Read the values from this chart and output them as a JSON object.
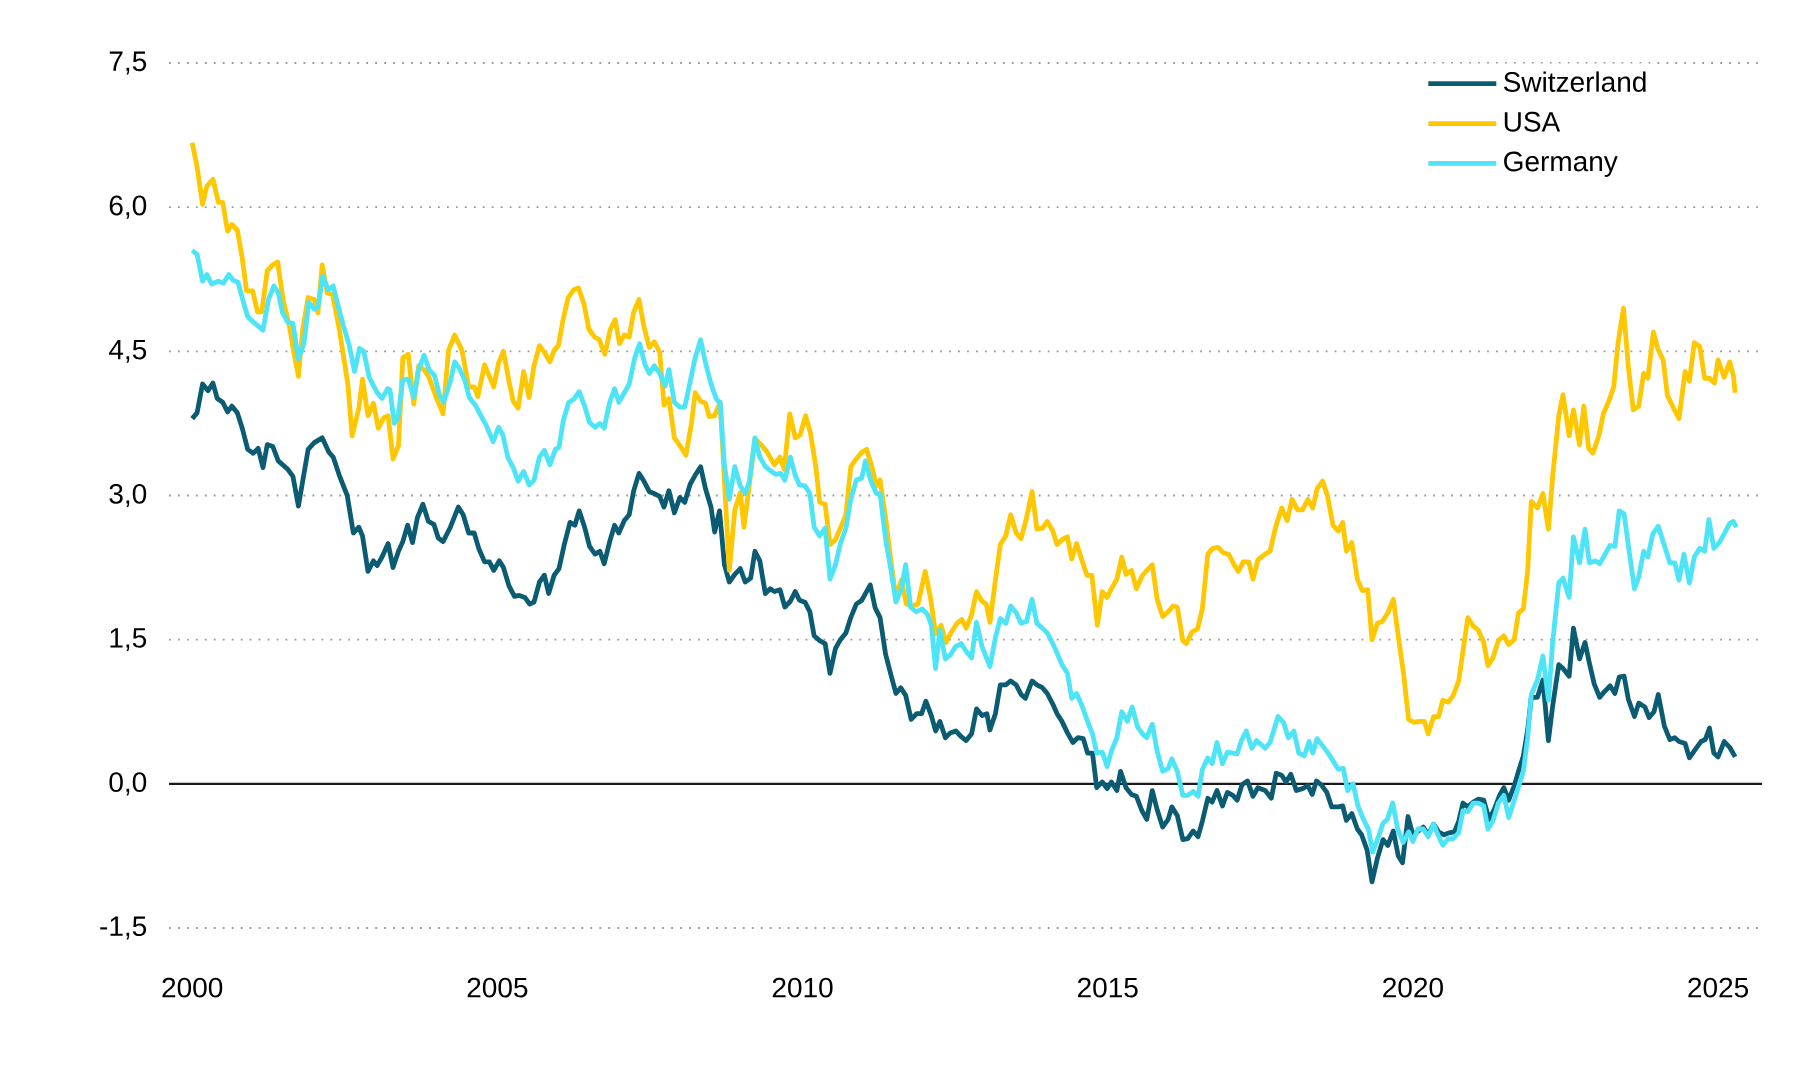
{
  "chart_data": {
    "type": "line",
    "xlim": [
      1999.62,
      2025.72
    ],
    "ylim": [
      -1.5,
      7.5
    ],
    "xticks": [
      2000,
      2005,
      2010,
      2015,
      2020,
      2025
    ],
    "yticks": [
      {
        "value": -1.5,
        "label": "-1,5"
      },
      {
        "value": 0,
        "label": "0,0"
      },
      {
        "value": 1.5,
        "label": "1,5"
      },
      {
        "value": 3,
        "label": "3,0"
      },
      {
        "value": 4.5,
        "label": "4,5"
      },
      {
        "value": 6,
        "label": "6,0"
      },
      {
        "value": 7.5,
        "label": "7,5"
      }
    ],
    "grid": "y",
    "legend": "top right",
    "line_style": "solid",
    "ref_lines": [
      {
        "axis": "y",
        "value": 0,
        "color": "#1a1a1a"
      }
    ],
    "series": [
      {
        "name": "Switzerland",
        "color": "#0b5c73",
        "x": [
          2000.0,
          2000.08,
          2000.17,
          2000.26,
          2000.34,
          2000.41,
          2000.5,
          2000.58,
          2000.65,
          2000.74,
          2000.82,
          2000.91,
          2001.0,
          2001.08,
          2001.16,
          2001.23,
          2001.32,
          2001.41,
          2001.57,
          2001.65,
          2001.74,
          2001.9,
          2002.0,
          2002.13,
          2002.24,
          2002.31,
          2002.41,
          2002.54,
          2002.64,
          2002.73,
          2002.79,
          2002.88,
          2002.97,
          2003.03,
          2003.11,
          2003.21,
          2003.29,
          2003.38,
          2003.45,
          2003.53,
          2003.61,
          2003.69,
          2003.78,
          2003.87,
          2003.96,
          2004.03,
          2004.11,
          2004.23,
          2004.36,
          2004.44,
          2004.53,
          2004.62,
          2004.7,
          2004.79,
          2004.87,
          2004.94,
          2005.03,
          2005.1,
          2005.19,
          2005.28,
          2005.36,
          2005.45,
          2005.53,
          2005.6,
          2005.69,
          2005.77,
          2005.84,
          2005.93,
          2006.01,
          2006.1,
          2006.19,
          2006.27,
          2006.34,
          2006.43,
          2006.51,
          2006.6,
          2006.68,
          2006.75,
          2006.84,
          2006.92,
          2006.99,
          2007.08,
          2007.16,
          2007.23,
          2007.32,
          2007.4,
          2007.49,
          2007.57,
          2007.66,
          2007.73,
          2007.81,
          2007.9,
          2007.99,
          2008.07,
          2008.16,
          2008.24,
          2008.33,
          2008.41,
          2008.5,
          2008.56,
          2008.64,
          2008.72,
          2008.8,
          2008.89,
          2008.98,
          2009.06,
          2009.15,
          2009.22,
          2009.3,
          2009.39,
          2009.47,
          2009.54,
          2009.63,
          2009.71,
          2009.8,
          2009.88,
          2009.95,
          2010.04,
          2010.12,
          2010.19,
          2010.28,
          2010.37,
          2010.45,
          2010.54,
          2010.62,
          2010.71,
          2010.79,
          2010.88,
          2010.97,
          2011.03,
          2011.11,
          2011.19,
          2011.27,
          2011.36,
          2011.45,
          2011.53,
          2011.61,
          2011.69,
          2011.78,
          2011.87,
          2011.95,
          2012.02,
          2012.11,
          2012.18,
          2012.25,
          2012.34,
          2012.42,
          2012.51,
          2012.6,
          2012.68,
          2012.77,
          2012.85,
          2012.94,
          2013.02,
          2013.07,
          2013.16,
          2013.24,
          2013.33,
          2013.41,
          2013.5,
          2013.58,
          2013.65,
          2013.76,
          2013.84,
          2013.93,
          2014.01,
          2014.1,
          2014.17,
          2014.25,
          2014.34,
          2014.43,
          2014.51,
          2014.6,
          2014.67,
          2014.75,
          2014.82,
          2014.91,
          2014.99,
          2015.06,
          2015.15,
          2015.21,
          2015.3,
          2015.39,
          2015.47,
          2015.56,
          2015.64,
          2015.73,
          2015.81,
          2015.9,
          2015.99,
          2016.05,
          2016.14,
          2016.23,
          2016.31,
          2016.4,
          2016.48,
          2016.55,
          2016.64,
          2016.71,
          2016.79,
          2016.88,
          2016.96,
          2017.05,
          2017.12,
          2017.2,
          2017.29,
          2017.38,
          2017.46,
          2017.58,
          2017.68,
          2017.76,
          2017.85,
          2017.92,
          2018.0,
          2018.09,
          2018.19,
          2018.28,
          2018.35,
          2018.42,
          2018.5,
          2018.59,
          2018.67,
          2018.78,
          2018.85,
          2018.91,
          2019.0,
          2019.09,
          2019.16,
          2019.25,
          2019.33,
          2019.42,
          2019.51,
          2019.59,
          2019.68,
          2019.76,
          2019.83,
          2019.92,
          2020.0,
          2020.09,
          2020.17,
          2020.25,
          2020.34,
          2020.42,
          2020.51,
          2020.59,
          2020.68,
          2020.75,
          2020.82,
          2020.9,
          2020.99,
          2021.07,
          2021.16,
          2021.25,
          2021.33,
          2021.42,
          2021.49,
          2021.57,
          2021.66,
          2021.74,
          2021.81,
          2021.88,
          2021.94,
          2022.04,
          2022.13,
          2022.22,
          2022.29,
          2022.39,
          2022.46,
          2022.56,
          2022.63,
          2022.73,
          2022.82,
          2022.89,
          2022.97,
          2023.06,
          2023.14,
          2023.23,
          2023.31,
          2023.38,
          2023.46,
          2023.53,
          2023.63,
          2023.7,
          2023.8,
          2023.87,
          2023.95,
          2024.02,
          2024.12,
          2024.21,
          2024.29,
          2024.36,
          2024.46,
          2024.53,
          2024.63,
          2024.72,
          2024.79,
          2024.86,
          2024.93,
          2025.0,
          2025.1,
          2025.19,
          2025.28
        ],
        "values": [
          3.8,
          3.86,
          4.16,
          4.09,
          4.17,
          4.01,
          3.97,
          3.87,
          3.93,
          3.86,
          3.7,
          3.48,
          3.44,
          3.49,
          3.29,
          3.53,
          3.51,
          3.36,
          3.27,
          3.2,
          2.89,
          3.48,
          3.55,
          3.6,
          3.45,
          3.4,
          3.21,
          3.0,
          2.61,
          2.67,
          2.58,
          2.21,
          2.32,
          2.27,
          2.36,
          2.5,
          2.25,
          2.42,
          2.52,
          2.69,
          2.51,
          2.77,
          2.91,
          2.73,
          2.7,
          2.56,
          2.52,
          2.67,
          2.88,
          2.8,
          2.61,
          2.61,
          2.44,
          2.31,
          2.31,
          2.22,
          2.32,
          2.25,
          2.06,
          1.95,
          1.96,
          1.94,
          1.87,
          1.89,
          2.1,
          2.17,
          1.98,
          2.17,
          2.24,
          2.5,
          2.72,
          2.69,
          2.84,
          2.67,
          2.47,
          2.39,
          2.42,
          2.29,
          2.52,
          2.69,
          2.61,
          2.74,
          2.8,
          3.04,
          3.23,
          3.15,
          3.04,
          3.02,
          2.99,
          2.88,
          3.05,
          2.82,
          2.98,
          2.93,
          3.12,
          3.21,
          3.3,
          3.07,
          2.88,
          2.62,
          2.84,
          2.28,
          2.1,
          2.18,
          2.24,
          2.1,
          2.14,
          2.42,
          2.32,
          1.98,
          2.03,
          2.0,
          2.02,
          1.84,
          1.9,
          2.0,
          1.91,
          1.89,
          1.79,
          1.54,
          1.49,
          1.46,
          1.15,
          1.41,
          1.5,
          1.57,
          1.73,
          1.87,
          1.91,
          1.98,
          2.07,
          1.83,
          1.73,
          1.35,
          1.13,
          0.94,
          1.0,
          0.92,
          0.67,
          0.73,
          0.73,
          0.86,
          0.71,
          0.55,
          0.65,
          0.48,
          0.53,
          0.55,
          0.49,
          0.45,
          0.52,
          0.78,
          0.71,
          0.73,
          0.56,
          0.73,
          1.03,
          1.03,
          1.07,
          1.03,
          0.93,
          0.89,
          1.07,
          1.03,
          1.0,
          0.94,
          0.83,
          0.73,
          0.65,
          0.53,
          0.43,
          0.48,
          0.47,
          0.32,
          0.32,
          -0.04,
          0.02,
          -0.05,
          0.02,
          -0.07,
          0.13,
          -0.04,
          -0.11,
          -0.13,
          -0.28,
          -0.37,
          -0.07,
          -0.27,
          -0.45,
          -0.37,
          -0.24,
          -0.33,
          -0.58,
          -0.57,
          -0.49,
          -0.55,
          -0.39,
          -0.15,
          -0.19,
          -0.07,
          -0.23,
          -0.09,
          -0.12,
          -0.17,
          -0.01,
          0.03,
          -0.13,
          -0.04,
          -0.07,
          -0.15,
          0.11,
          0.09,
          0.02,
          0.1,
          -0.07,
          -0.05,
          -0.02,
          -0.11,
          0.03,
          -0.01,
          -0.09,
          -0.24,
          -0.24,
          -0.23,
          -0.38,
          -0.31,
          -0.47,
          -0.53,
          -0.69,
          -1.02,
          -0.77,
          -0.58,
          -0.64,
          -0.49,
          -0.75,
          -0.82,
          -0.34,
          -0.53,
          -0.49,
          -0.45,
          -0.53,
          -0.42,
          -0.5,
          -0.53,
          -0.51,
          -0.5,
          -0.39,
          -0.2,
          -0.24,
          -0.19,
          -0.16,
          -0.17,
          -0.37,
          -0.27,
          -0.12,
          -0.04,
          -0.17,
          -0.02,
          0.15,
          0.29,
          0.56,
          0.9,
          0.9,
          1.08,
          0.45,
          0.81,
          1.24,
          1.2,
          1.12,
          1.62,
          1.3,
          1.47,
          1.26,
          1.04,
          0.9,
          0.96,
          1.02,
          0.94,
          1.11,
          1.12,
          0.88,
          0.7,
          0.84,
          0.8,
          0.69,
          0.75,
          0.93,
          0.6,
          0.46,
          0.48,
          0.44,
          0.42,
          0.27,
          0.36,
          0.44,
          0.46,
          0.58,
          0.32,
          0.28,
          0.44,
          0.38,
          0.28
        ]
      },
      {
        "name": "USA",
        "color": "#ffc700",
        "x": [
          2000.0,
          2000.08,
          2000.17,
          2000.24,
          2000.34,
          2000.43,
          2000.5,
          2000.58,
          2000.65,
          2000.74,
          2000.82,
          2000.89,
          2000.99,
          2001.07,
          2001.14,
          2001.23,
          2001.32,
          2001.4,
          2001.49,
          2001.59,
          2001.66,
          2001.74,
          2001.81,
          2001.9,
          2002.0,
          2002.06,
          2002.13,
          2002.21,
          2002.3,
          2002.41,
          2002.55,
          2002.62,
          2002.73,
          2002.79,
          2002.88,
          2002.97,
          2003.05,
          2003.14,
          2003.21,
          2003.29,
          2003.38,
          2003.45,
          2003.54,
          2003.63,
          2003.71,
          2003.8,
          2003.88,
          2004.01,
          2004.11,
          2004.2,
          2004.3,
          2004.42,
          2004.53,
          2004.62,
          2004.68,
          2004.79,
          2004.94,
          2005.02,
          2005.1,
          2005.19,
          2005.26,
          2005.34,
          2005.43,
          2005.52,
          2005.6,
          2005.69,
          2005.77,
          2005.86,
          2005.93,
          2006.0,
          2006.07,
          2006.16,
          2006.25,
          2006.33,
          2006.42,
          2006.5,
          2006.59,
          2006.67,
          2006.76,
          2006.85,
          2006.93,
          2007.0,
          2007.08,
          2007.16,
          2007.23,
          2007.32,
          2007.4,
          2007.49,
          2007.57,
          2007.66,
          2007.73,
          2007.81,
          2007.9,
          2008.0,
          2008.09,
          2008.18,
          2008.24,
          2008.33,
          2008.41,
          2008.47,
          2008.56,
          2008.65,
          2008.8,
          2008.89,
          2008.98,
          2009.04,
          2009.13,
          2009.22,
          2009.32,
          2009.42,
          2009.54,
          2009.63,
          2009.7,
          2009.79,
          2009.88,
          2009.96,
          2010.05,
          2010.13,
          2010.22,
          2010.28,
          2010.37,
          2010.45,
          2010.54,
          2010.62,
          2010.71,
          2010.79,
          2010.88,
          2010.97,
          2011.05,
          2011.14,
          2011.21,
          2011.27,
          2011.36,
          2011.45,
          2011.53,
          2011.62,
          2011.7,
          2011.79,
          2011.89,
          2012.01,
          2012.1,
          2012.18,
          2012.27,
          2012.35,
          2012.44,
          2012.53,
          2012.61,
          2012.68,
          2012.77,
          2012.85,
          2012.94,
          2013.01,
          2013.07,
          2013.16,
          2013.24,
          2013.33,
          2013.41,
          2013.5,
          2013.58,
          2013.67,
          2013.76,
          2013.84,
          2013.93,
          2014.01,
          2014.1,
          2014.17,
          2014.25,
          2014.34,
          2014.41,
          2014.49,
          2014.57,
          2014.66,
          2014.74,
          2014.83,
          2014.91,
          2014.99,
          2015.06,
          2015.15,
          2015.23,
          2015.3,
          2015.39,
          2015.47,
          2015.56,
          2015.64,
          2015.73,
          2015.81,
          2015.9,
          2015.99,
          2016.07,
          2016.14,
          2016.23,
          2016.29,
          2016.38,
          2016.47,
          2016.55,
          2016.64,
          2016.72,
          2016.81,
          2016.9,
          2016.98,
          2017.07,
          2017.14,
          2017.22,
          2017.31,
          2017.38,
          2017.46,
          2017.58,
          2017.66,
          2017.75,
          2017.85,
          2017.94,
          2018.02,
          2018.11,
          2018.19,
          2018.28,
          2018.36,
          2018.43,
          2018.52,
          2018.6,
          2018.69,
          2018.78,
          2018.85,
          2018.91,
          2019.0,
          2019.09,
          2019.17,
          2019.26,
          2019.33,
          2019.42,
          2019.5,
          2019.59,
          2019.68,
          2019.76,
          2019.85,
          2019.93,
          2020.02,
          2020.11,
          2020.19,
          2020.25,
          2020.34,
          2020.42,
          2020.49,
          2020.58,
          2020.66,
          2020.75,
          2020.82,
          2020.9,
          2020.99,
          2021.07,
          2021.16,
          2021.23,
          2021.31,
          2021.4,
          2021.49,
          2021.57,
          2021.66,
          2021.73,
          2021.81,
          2021.88,
          2021.94,
          2022.04,
          2022.13,
          2022.22,
          2022.29,
          2022.39,
          2022.46,
          2022.56,
          2022.63,
          2022.73,
          2022.8,
          2022.88,
          2022.95,
          2023.05,
          2023.12,
          2023.21,
          2023.29,
          2023.36,
          2023.45,
          2023.53,
          2023.61,
          2023.7,
          2023.78,
          2023.85,
          2023.94,
          2024.01,
          2024.1,
          2024.17,
          2024.27,
          2024.36,
          2024.46,
          2024.53,
          2024.61,
          2024.7,
          2024.78,
          2024.86,
          2024.94,
          2025.0,
          2025.1,
          2025.19,
          2025.25,
          2025.28
        ],
        "values": [
          6.67,
          6.42,
          6.03,
          6.22,
          6.29,
          6.05,
          6.05,
          5.75,
          5.82,
          5.76,
          5.47,
          5.13,
          5.13,
          4.91,
          4.91,
          5.34,
          5.4,
          5.43,
          5.03,
          4.77,
          4.51,
          4.24,
          4.73,
          5.06,
          5.04,
          4.9,
          5.4,
          5.11,
          5.09,
          4.73,
          4.16,
          3.62,
          3.91,
          4.21,
          3.83,
          3.96,
          3.7,
          3.81,
          3.83,
          3.38,
          3.52,
          4.43,
          4.47,
          3.95,
          4.35,
          4.31,
          4.23,
          4.0,
          3.85,
          4.51,
          4.67,
          4.51,
          4.13,
          4.13,
          4.03,
          4.36,
          4.13,
          4.38,
          4.5,
          4.19,
          3.98,
          3.91,
          4.29,
          4.02,
          4.35,
          4.56,
          4.49,
          4.39,
          4.51,
          4.56,
          4.81,
          5.06,
          5.14,
          5.16,
          4.99,
          4.73,
          4.65,
          4.62,
          4.47,
          4.73,
          4.83,
          4.58,
          4.67,
          4.65,
          4.9,
          5.04,
          4.76,
          4.54,
          4.6,
          4.49,
          3.94,
          4.01,
          3.6,
          3.51,
          3.42,
          3.75,
          4.07,
          3.98,
          3.96,
          3.82,
          3.83,
          3.97,
          2.22,
          2.85,
          3.03,
          2.67,
          3.12,
          3.59,
          3.53,
          3.45,
          3.32,
          3.4,
          3.27,
          3.85,
          3.6,
          3.63,
          3.83,
          3.65,
          3.29,
          2.93,
          2.91,
          2.49,
          2.54,
          2.66,
          2.8,
          3.3,
          3.38,
          3.45,
          3.48,
          3.29,
          3.1,
          3.16,
          2.77,
          2.31,
          1.94,
          2.12,
          1.87,
          1.85,
          1.87,
          2.21,
          1.92,
          1.56,
          1.65,
          1.47,
          1.58,
          1.67,
          1.71,
          1.62,
          1.76,
          2.0,
          1.9,
          1.87,
          1.68,
          2.12,
          2.49,
          2.58,
          2.8,
          2.61,
          2.55,
          2.77,
          3.04,
          2.65,
          2.66,
          2.73,
          2.63,
          2.49,
          2.54,
          2.57,
          2.34,
          2.5,
          2.34,
          2.17,
          2.17,
          1.65,
          2.0,
          1.94,
          2.03,
          2.13,
          2.36,
          2.18,
          2.22,
          2.03,
          2.16,
          2.22,
          2.28,
          1.92,
          1.74,
          1.79,
          1.85,
          1.84,
          1.49,
          1.46,
          1.58,
          1.61,
          1.82,
          2.39,
          2.45,
          2.46,
          2.4,
          2.39,
          2.28,
          2.21,
          2.31,
          2.31,
          2.13,
          2.33,
          2.39,
          2.42,
          2.67,
          2.87,
          2.74,
          2.96,
          2.85,
          2.85,
          2.96,
          2.87,
          3.07,
          3.15,
          3.0,
          2.69,
          2.63,
          2.72,
          2.42,
          2.51,
          2.13,
          2.01,
          2.02,
          1.5,
          1.67,
          1.69,
          1.78,
          1.92,
          1.54,
          1.13,
          0.67,
          0.64,
          0.65,
          0.65,
          0.52,
          0.7,
          0.7,
          0.87,
          0.85,
          0.92,
          1.07,
          1.38,
          1.73,
          1.64,
          1.6,
          1.47,
          1.23,
          1.31,
          1.49,
          1.54,
          1.45,
          1.5,
          1.78,
          1.82,
          2.22,
          2.94,
          2.87,
          3.02,
          2.65,
          3.2,
          3.83,
          4.05,
          3.62,
          3.89,
          3.53,
          3.93,
          3.49,
          3.44,
          3.63,
          3.85,
          3.98,
          4.13,
          4.58,
          4.95,
          4.34,
          3.89,
          3.93,
          4.27,
          4.22,
          4.7,
          4.53,
          4.41,
          4.04,
          3.91,
          3.8,
          4.29,
          4.19,
          4.59,
          4.55,
          4.22,
          4.22,
          4.17,
          4.41,
          4.23,
          4.39,
          4.25,
          4.07
        ]
      },
      {
        "name": "Germany",
        "color": "#4de4f7",
        "x": [
          2000.0,
          2000.08,
          2000.17,
          2000.24,
          2000.32,
          2000.43,
          2000.51,
          2000.6,
          2000.67,
          2000.75,
          2000.84,
          2000.91,
          2001.01,
          2001.16,
          2001.25,
          2001.34,
          2001.41,
          2001.48,
          2001.57,
          2001.65,
          2001.74,
          2001.83,
          2001.91,
          2002.0,
          2002.06,
          2002.14,
          2002.23,
          2002.31,
          2002.4,
          2002.48,
          2002.57,
          2002.66,
          2002.74,
          2002.81,
          2002.9,
          2003.03,
          2003.11,
          2003.2,
          2003.24,
          2003.31,
          2003.37,
          2003.45,
          2003.54,
          2003.63,
          2003.71,
          2003.8,
          2003.88,
          2003.97,
          2004.05,
          2004.12,
          2004.23,
          2004.3,
          2004.38,
          2004.47,
          2004.54,
          2004.64,
          2004.73,
          2004.81,
          2004.93,
          2005.02,
          2005.09,
          2005.17,
          2005.26,
          2005.34,
          2005.43,
          2005.52,
          2005.6,
          2005.69,
          2005.77,
          2005.86,
          2005.95,
          2006.01,
          2006.08,
          2006.17,
          2006.25,
          2006.34,
          2006.43,
          2006.51,
          2006.6,
          2006.68,
          2006.75,
          2006.84,
          2006.92,
          2006.99,
          2007.08,
          2007.16,
          2007.25,
          2007.33,
          2007.42,
          2007.49,
          2007.57,
          2007.66,
          2007.75,
          2007.81,
          2007.9,
          2007.99,
          2008.07,
          2008.16,
          2008.24,
          2008.33,
          2008.41,
          2008.5,
          2008.59,
          2008.65,
          2008.72,
          2008.8,
          2008.89,
          2008.98,
          2009.06,
          2009.13,
          2009.22,
          2009.3,
          2009.39,
          2009.47,
          2009.56,
          2009.64,
          2009.71,
          2009.8,
          2009.88,
          2009.95,
          2010.04,
          2010.12,
          2010.19,
          2010.28,
          2010.37,
          2010.45,
          2010.54,
          2010.62,
          2010.71,
          2010.79,
          2010.88,
          2010.97,
          2011.03,
          2011.12,
          2011.21,
          2011.27,
          2011.36,
          2011.45,
          2011.53,
          2011.62,
          2011.69,
          2011.77,
          2011.86,
          2011.96,
          2012.05,
          2012.11,
          2012.18,
          2012.25,
          2012.34,
          2012.42,
          2012.51,
          2012.6,
          2012.68,
          2012.77,
          2012.85,
          2012.94,
          2013.02,
          2013.07,
          2013.16,
          2013.24,
          2013.33,
          2013.41,
          2013.5,
          2013.58,
          2013.67,
          2013.76,
          2013.84,
          2013.93,
          2014.01,
          2014.1,
          2014.17,
          2014.25,
          2014.34,
          2014.41,
          2014.49,
          2014.58,
          2014.67,
          2014.75,
          2014.82,
          2014.91,
          2014.99,
          2015.06,
          2015.15,
          2015.23,
          2015.32,
          2015.4,
          2015.49,
          2015.57,
          2015.64,
          2015.73,
          2015.81,
          2015.9,
          2015.99,
          2016.05,
          2016.14,
          2016.23,
          2016.31,
          2016.4,
          2016.48,
          2016.55,
          2016.64,
          2016.71,
          2016.79,
          2016.88,
          2016.96,
          2017.05,
          2017.12,
          2017.19,
          2017.27,
          2017.36,
          2017.44,
          2017.58,
          2017.66,
          2017.79,
          2017.88,
          2017.96,
          2018.05,
          2018.13,
          2018.22,
          2018.3,
          2018.36,
          2018.43,
          2018.6,
          2018.78,
          2018.86,
          2018.93,
          2019.02,
          2019.1,
          2019.19,
          2019.27,
          2019.34,
          2019.43,
          2019.51,
          2019.58,
          2019.67,
          2019.75,
          2019.84,
          2019.93,
          2020.0,
          2020.08,
          2020.17,
          2020.25,
          2020.34,
          2020.41,
          2020.49,
          2020.58,
          2020.66,
          2020.75,
          2020.82,
          2020.9,
          2020.99,
          2021.07,
          2021.16,
          2021.23,
          2021.31,
          2021.4,
          2021.49,
          2021.57,
          2021.66,
          2021.74,
          2021.81,
          2021.88,
          2021.94,
          2022.04,
          2022.13,
          2022.22,
          2022.29,
          2022.39,
          2022.46,
          2022.56,
          2022.63,
          2022.73,
          2022.82,
          2022.89,
          2022.99,
          2023.06,
          2023.14,
          2023.23,
          2023.31,
          2023.38,
          2023.46,
          2023.53,
          2023.63,
          2023.7,
          2023.78,
          2023.85,
          2023.93,
          2024.02,
          2024.12,
          2024.21,
          2024.29,
          2024.36,
          2024.44,
          2024.53,
          2024.61,
          2024.7,
          2024.78,
          2024.85,
          2024.93,
          2025.02,
          2025.1,
          2025.19,
          2025.25,
          2025.3
        ],
        "values": [
          5.55,
          5.51,
          5.23,
          5.3,
          5.2,
          5.23,
          5.21,
          5.3,
          5.24,
          5.22,
          5.01,
          4.86,
          4.8,
          4.72,
          5.04,
          5.18,
          5.11,
          4.9,
          4.8,
          4.79,
          4.42,
          4.58,
          5.01,
          4.94,
          4.96,
          5.28,
          5.14,
          5.18,
          4.95,
          4.76,
          4.57,
          4.29,
          4.53,
          4.5,
          4.23,
          4.07,
          4.01,
          4.11,
          4.1,
          3.75,
          3.81,
          4.2,
          4.21,
          4.02,
          4.31,
          4.46,
          4.31,
          4.25,
          4.05,
          3.97,
          4.19,
          4.39,
          4.32,
          4.19,
          4.02,
          3.94,
          3.83,
          3.74,
          3.56,
          3.71,
          3.63,
          3.4,
          3.29,
          3.15,
          3.25,
          3.11,
          3.16,
          3.4,
          3.47,
          3.32,
          3.48,
          3.5,
          3.78,
          3.97,
          4.0,
          4.08,
          3.93,
          3.76,
          3.71,
          3.75,
          3.7,
          3.97,
          4.11,
          3.97,
          4.07,
          4.16,
          4.43,
          4.58,
          4.36,
          4.27,
          4.35,
          4.27,
          4.14,
          4.31,
          3.97,
          3.92,
          3.92,
          4.19,
          4.43,
          4.62,
          4.38,
          4.16,
          4.0,
          3.97,
          3.32,
          2.96,
          3.3,
          3.1,
          3.02,
          3.15,
          3.6,
          3.4,
          3.3,
          3.26,
          3.22,
          3.23,
          3.16,
          3.4,
          3.21,
          3.11,
          3.1,
          3.02,
          2.67,
          2.58,
          2.66,
          2.13,
          2.28,
          2.5,
          2.66,
          2.96,
          3.16,
          3.18,
          3.36,
          3.15,
          3.02,
          3.02,
          2.55,
          2.22,
          1.89,
          2.03,
          2.28,
          1.84,
          1.79,
          1.82,
          1.76,
          1.65,
          1.2,
          1.6,
          1.3,
          1.34,
          1.43,
          1.46,
          1.38,
          1.31,
          1.68,
          1.43,
          1.3,
          1.22,
          1.52,
          1.72,
          1.67,
          1.85,
          1.78,
          1.67,
          1.69,
          1.92,
          1.67,
          1.62,
          1.57,
          1.46,
          1.36,
          1.24,
          1.15,
          0.89,
          0.94,
          0.81,
          0.65,
          0.52,
          0.32,
          0.33,
          0.18,
          0.34,
          0.48,
          0.75,
          0.65,
          0.8,
          0.59,
          0.52,
          0.48,
          0.62,
          0.34,
          0.13,
          0.16,
          0.26,
          0.13,
          -0.12,
          -0.12,
          -0.08,
          -0.13,
          0.15,
          0.27,
          0.21,
          0.43,
          0.21,
          0.33,
          0.32,
          0.31,
          0.45,
          0.55,
          0.37,
          0.45,
          0.37,
          0.43,
          0.7,
          0.64,
          0.48,
          0.55,
          0.32,
          0.29,
          0.44,
          0.32,
          0.47,
          0.33,
          0.15,
          0.16,
          -0.07,
          0.0,
          -0.23,
          -0.37,
          -0.47,
          -0.71,
          -0.56,
          -0.41,
          -0.37,
          -0.2,
          -0.47,
          -0.61,
          -0.5,
          -0.6,
          -0.47,
          -0.47,
          -0.55,
          -0.42,
          -0.53,
          -0.64,
          -0.57,
          -0.57,
          -0.51,
          -0.28,
          -0.29,
          -0.2,
          -0.2,
          -0.23,
          -0.47,
          -0.39,
          -0.2,
          -0.12,
          -0.35,
          -0.17,
          -0.01,
          0.13,
          0.48,
          0.93,
          1.08,
          1.33,
          0.87,
          1.47,
          2.09,
          2.14,
          1.94,
          2.57,
          2.3,
          2.65,
          2.3,
          2.32,
          2.29,
          2.38,
          2.48,
          2.47,
          2.84,
          2.81,
          2.48,
          2.03,
          2.15,
          2.42,
          2.36,
          2.6,
          2.68,
          2.48,
          2.3,
          2.3,
          2.12,
          2.39,
          2.09,
          2.36,
          2.45,
          2.42,
          2.75,
          2.45,
          2.51,
          2.6,
          2.71,
          2.73,
          2.67
        ]
      }
    ]
  }
}
